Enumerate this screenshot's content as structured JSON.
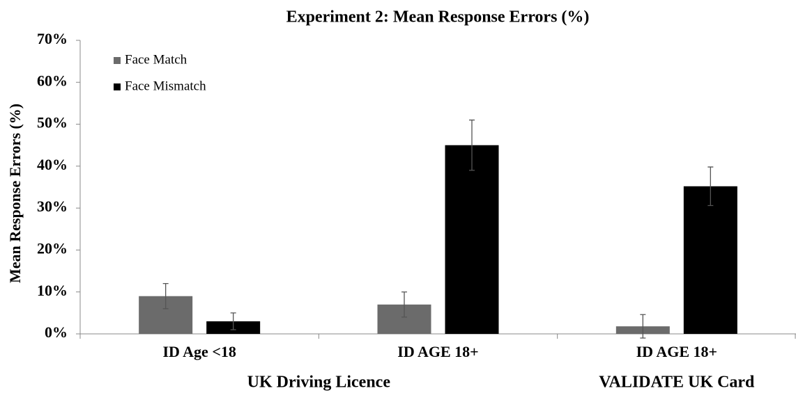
{
  "chart_data": {
    "type": "bar",
    "title": "Experiment 2: Mean Response Errors (%)",
    "y_label": "Mean Response Errors (%)",
    "categories": [
      "ID Age <18",
      "ID AGE 18+",
      "ID AGE 18+"
    ],
    "category_groups": [
      {
        "name": "UK Driving Licence",
        "size": 2
      },
      {
        "name": "VALIDATE UK Card",
        "size": 1
      }
    ],
    "series": [
      {
        "name": "Face Match",
        "color": "#6b6b6b",
        "values": [
          9,
          7,
          1.8
        ],
        "errors": [
          3,
          3,
          2.8
        ]
      },
      {
        "name": "Face Mismatch",
        "color": "#000000",
        "values": [
          3,
          45,
          35.2
        ],
        "errors": [
          2,
          6,
          4.6
        ]
      }
    ],
    "ylim": [
      0,
      70
    ],
    "yticks": [
      {
        "value": 0,
        "label": "0%"
      },
      {
        "value": 10,
        "label": "10%"
      },
      {
        "value": 20,
        "label": "20%"
      },
      {
        "value": 30,
        "label": "30%"
      },
      {
        "value": 40,
        "label": "40%"
      },
      {
        "value": 50,
        "label": "50%"
      },
      {
        "value": 60,
        "label": "60%"
      },
      {
        "value": 70,
        "label": "70%"
      }
    ],
    "legend": "top-left"
  }
}
